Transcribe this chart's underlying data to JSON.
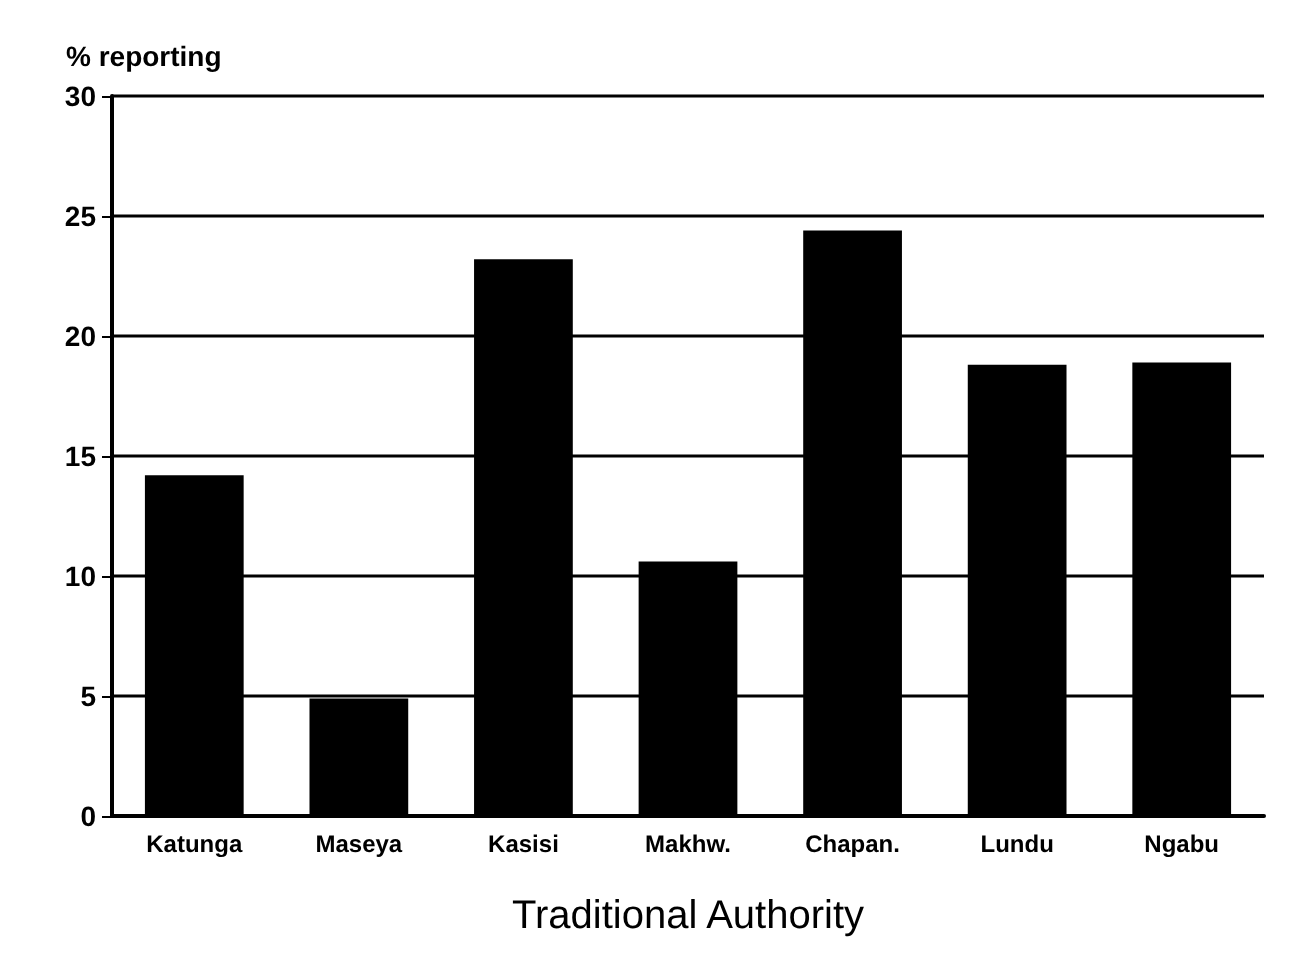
{
  "chart_data": {
    "type": "bar",
    "ylabel": "% reporting",
    "xlabel": "Traditional Authority",
    "categories": [
      "Katunga",
      "Maseya",
      "Kasisi",
      "Makhw.",
      "Chapan.",
      "Lundu",
      "Ngabu"
    ],
    "values": [
      14.2,
      4.9,
      23.2,
      10.6,
      24.4,
      18.8,
      18.9
    ],
    "color": "#000000",
    "ylim": [
      0,
      30
    ],
    "yticks": [
      0,
      5,
      10,
      15,
      20,
      25,
      30
    ],
    "grid": "y"
  }
}
